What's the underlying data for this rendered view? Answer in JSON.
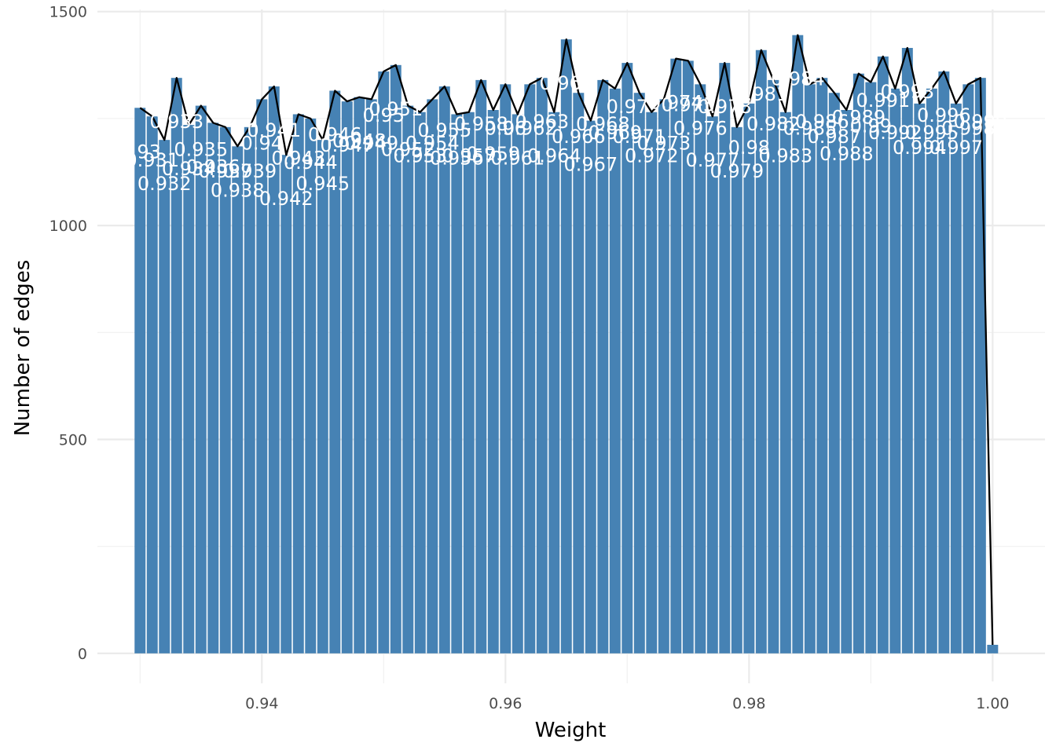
{
  "chart_data": {
    "type": "bar",
    "xlabel": "Weight",
    "ylabel": "Number of edges",
    "xlim": [
      0.9265,
      1.0043
    ],
    "ylim": [
      -70,
      1505
    ],
    "x_ticks": [
      0.94,
      0.96,
      0.98,
      1.0
    ],
    "x_tick_labels": [
      "0.94",
      "0.96",
      "0.98",
      "1.00"
    ],
    "y_ticks": [
      0,
      500,
      1000,
      1500
    ],
    "y_tick_labels": [
      "0",
      "500",
      "1000",
      "1500"
    ],
    "grid": true,
    "bar_color": "#4682b4",
    "line_color": "#000000",
    "label_color": "#ffffff",
    "x": [
      0.93,
      0.931,
      0.932,
      0.933,
      0.934,
      0.935,
      0.936,
      0.937,
      0.938,
      0.939,
      0.94,
      0.941,
      0.942,
      0.943,
      0.944,
      0.945,
      0.946,
      0.947,
      0.948,
      0.949,
      0.95,
      0.951,
      0.952,
      0.953,
      0.954,
      0.955,
      0.956,
      0.957,
      0.958,
      0.959,
      0.96,
      0.961,
      0.962,
      0.963,
      0.964,
      0.965,
      0.966,
      0.967,
      0.968,
      0.969,
      0.97,
      0.971,
      0.972,
      0.973,
      0.974,
      0.975,
      0.976,
      0.977,
      0.978,
      0.979,
      0.98,
      0.981,
      0.982,
      0.983,
      0.984,
      0.985,
      0.986,
      0.987,
      0.988,
      0.989,
      0.99,
      0.991,
      0.992,
      0.993,
      0.994,
      0.995,
      0.996,
      0.997,
      0.998,
      0.999,
      1.0
    ],
    "values": [
      1275,
      1255,
      1200,
      1345,
      1235,
      1280,
      1240,
      1230,
      1185,
      1230,
      1295,
      1325,
      1165,
      1260,
      1250,
      1200,
      1315,
      1290,
      1300,
      1295,
      1360,
      1375,
      1280,
      1265,
      1295,
      1325,
      1260,
      1265,
      1340,
      1270,
      1330,
      1260,
      1330,
      1345,
      1265,
      1435,
      1310,
      1245,
      1340,
      1320,
      1380,
      1310,
      1265,
      1295,
      1390,
      1385,
      1330,
      1255,
      1380,
      1230,
      1285,
      1410,
      1340,
      1265,
      1445,
      1330,
      1345,
      1310,
      1270,
      1355,
      1335,
      1395,
      1320,
      1415,
      1285,
      1320,
      1360,
      1285,
      1330,
      1345,
      20
    ],
    "data_labels": [
      "0.93",
      "0.931",
      "0.932",
      "0.933",
      "0.934",
      "0.935",
      "0.936",
      "0.937",
      "0.938",
      "0.939",
      "0.94",
      "0.941",
      "0.942",
      "0.943",
      "0.944",
      "0.945",
      "0.946",
      "0.947",
      "0.948",
      "0.949",
      "0.95",
      "0.951",
      "0.952",
      "0.953",
      "0.954",
      "0.955",
      "0.956",
      "0.957",
      "0.958",
      "0.959",
      "0.96",
      "0.961",
      "0.962",
      "0.963",
      "0.964",
      "0.965",
      "0.966",
      "0.967",
      "0.968",
      "0.969",
      "0.97",
      "0.971",
      "0.972",
      "0.973",
      "0.974",
      "0.975",
      "0.976",
      "0.977",
      "0.978",
      "0.979",
      "0.98",
      "0.981",
      "0.982",
      "0.983",
      "0.984",
      "0.985",
      "0.986",
      "0.987",
      "0.988",
      "0.989",
      "0.99",
      "0.991",
      "0.992",
      "0.993",
      "0.994",
      "0.995",
      "0.996",
      "0.997",
      "0.998",
      "0.999",
      "1"
    ]
  }
}
